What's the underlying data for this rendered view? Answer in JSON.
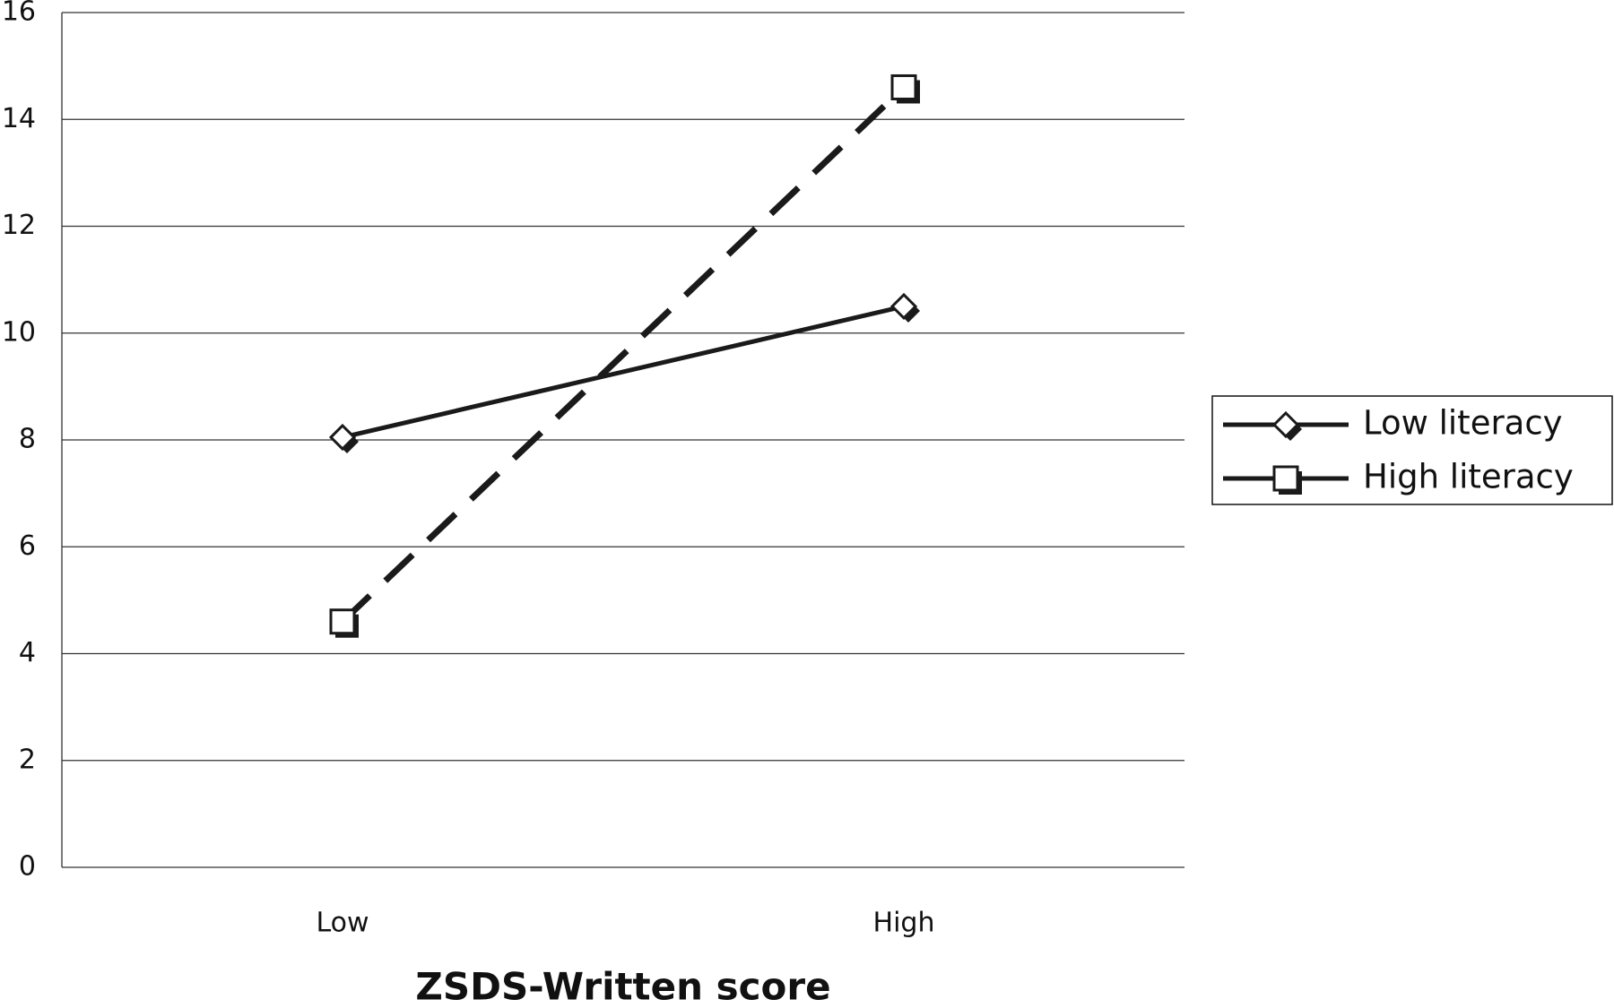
{
  "chart_data": {
    "type": "line",
    "x_label": "ZSDS-Written score",
    "categories": [
      "Low",
      "High"
    ],
    "series": [
      {
        "name": "Low literacy",
        "color": "#1a1a1a",
        "marker": "diamond",
        "line_style": "solid",
        "values": [
          8.05,
          10.5
        ]
      },
      {
        "name": "High literacy",
        "color": "#1a1a1a",
        "marker": "square",
        "line_style": "dashed",
        "values": [
          4.6,
          14.6
        ]
      }
    ],
    "ylim": [
      0,
      16
    ],
    "yticks": [
      0,
      2,
      4,
      6,
      8,
      10,
      12,
      14,
      16
    ],
    "grid": true,
    "legend": "right"
  }
}
